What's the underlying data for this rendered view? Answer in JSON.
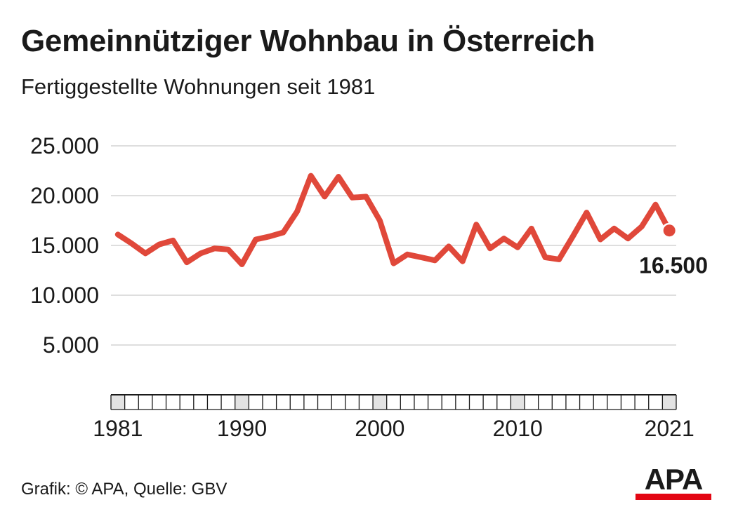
{
  "header": {
    "title": "Gemeinnütziger Wohnbau in Österreich",
    "subtitle": "Fertiggestellte Wohnungen seit 1981"
  },
  "footer": {
    "source": "Grafik: © APA, Quelle: GBV",
    "logo_text": "APA",
    "logo_bar_color": "#e30613"
  },
  "chart_data": {
    "type": "line",
    "title": "Gemeinnütziger Wohnbau in Österreich",
    "subtitle": "Fertiggestellte Wohnungen seit 1981",
    "xlabel": "",
    "ylabel": "",
    "xlim": [
      1981,
      2021
    ],
    "ylim": [
      0,
      25000
    ],
    "yticks": [
      5000,
      10000,
      15000,
      20000,
      25000
    ],
    "ytick_labels": [
      "5.000",
      "10.000",
      "15.000",
      "20.000",
      "25.000"
    ],
    "xticks": [
      1981,
      1990,
      2000,
      2010,
      2021
    ],
    "xtick_labels": [
      "1981",
      "1990",
      "2000",
      "2010",
      "2021"
    ],
    "grid": true,
    "line_color": "#e0483a",
    "series": [
      {
        "x": [
          1981,
          1982,
          1983,
          1984,
          1985,
          1986,
          1987,
          1988,
          1989,
          1990,
          1991,
          1992,
          1993,
          1994,
          1995,
          1996,
          1997,
          1998,
          1999,
          2000,
          2001,
          2002,
          2003,
          2004,
          2005,
          2006,
          2007,
          2008,
          2009,
          2010,
          2011,
          2012,
          2013,
          2014,
          2015,
          2016,
          2017,
          2018,
          2019,
          2020,
          2021
        ],
        "values": [
          16100,
          15200,
          14200,
          15100,
          15500,
          13300,
          14200,
          14700,
          14600,
          13100,
          15600,
          15900,
          16300,
          18400,
          22000,
          19900,
          21900,
          19800,
          19900,
          17500,
          13200,
          14100,
          13800,
          13500,
          14900,
          13400,
          17100,
          14700,
          15700,
          14800,
          16700,
          13800,
          13600,
          15900,
          18300,
          15600,
          16700,
          15700,
          16900,
          19100,
          16500
        ]
      }
    ],
    "annotations": [
      {
        "x": 2021,
        "y": 16500,
        "text": "16.500"
      }
    ]
  }
}
